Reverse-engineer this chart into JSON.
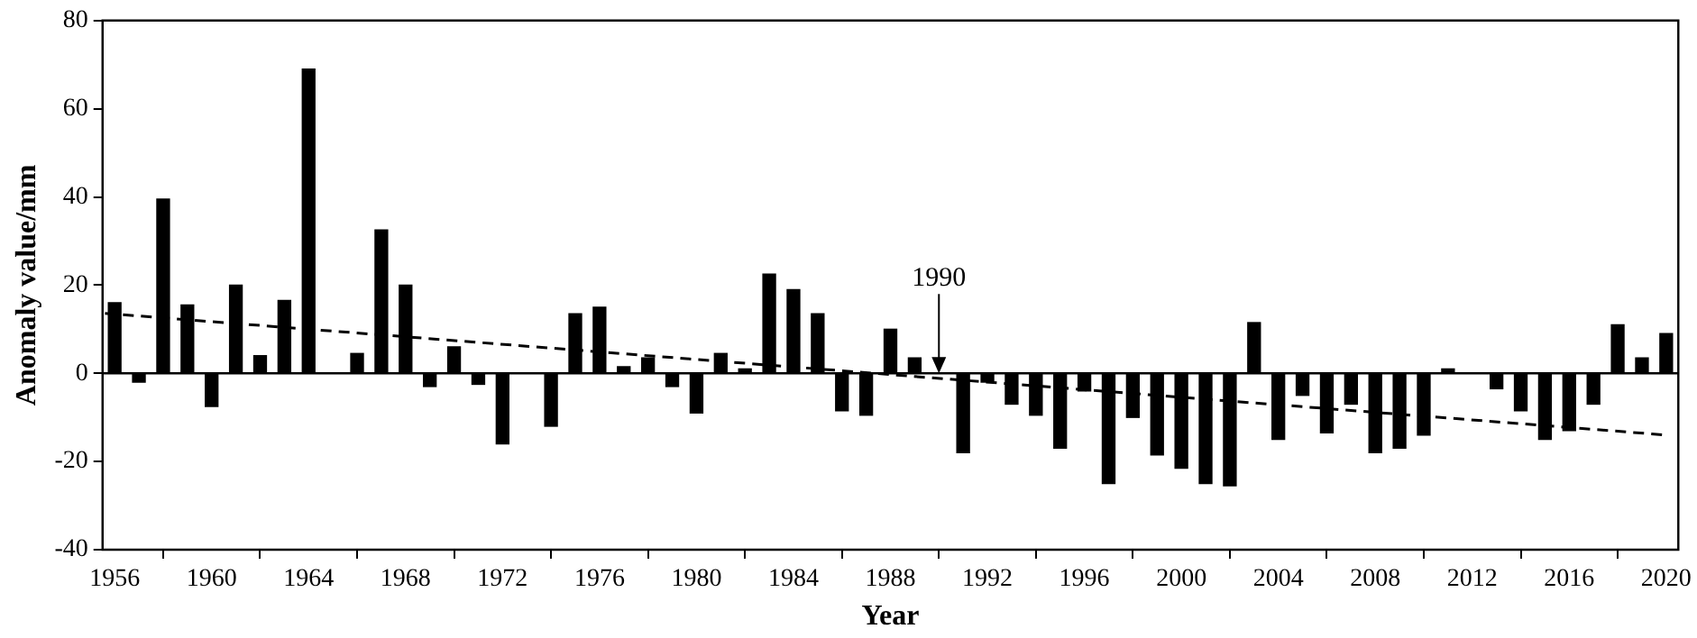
{
  "chart_data": {
    "type": "bar",
    "xlabel": "Year",
    "ylabel": "Anomaly value/mm",
    "x": [
      1956,
      1957,
      1958,
      1959,
      1960,
      1961,
      1962,
      1963,
      1964,
      1965,
      1966,
      1967,
      1968,
      1969,
      1970,
      1971,
      1972,
      1973,
      1974,
      1975,
      1976,
      1977,
      1978,
      1979,
      1980,
      1981,
      1982,
      1983,
      1984,
      1985,
      1986,
      1987,
      1988,
      1989,
      1990,
      1991,
      1992,
      1993,
      1994,
      1995,
      1996,
      1997,
      1998,
      1999,
      2000,
      2001,
      2002,
      2003,
      2004,
      2005,
      2006,
      2007,
      2008,
      2009,
      2010,
      2011,
      2012,
      2013,
      2014,
      2015,
      2016,
      2017,
      2018,
      2019,
      2020
    ],
    "series": [
      {
        "color": "#000000",
        "values": [
          16,
          -2,
          39.5,
          15.5,
          -7.5,
          20,
          4,
          16.5,
          69,
          0,
          4.5,
          32.5,
          20,
          -3,
          6,
          -2.5,
          -16,
          0,
          -12,
          13.5,
          15,
          1.5,
          3.5,
          -3,
          -9,
          4.5,
          1,
          22.5,
          19,
          13.5,
          -8.5,
          -9.5,
          10,
          3.5,
          0,
          -18,
          -2,
          -7,
          -9.5,
          -17,
          -4,
          -25,
          -10,
          -18.5,
          -21.5,
          -25,
          -25.5,
          11.5,
          -15,
          -5,
          -13.5,
          -7,
          -18,
          -17,
          -14,
          1,
          0,
          -3.5,
          -8.5,
          -15,
          -13,
          -7,
          11,
          3.5,
          9
        ]
      },
      {
        "type": "line",
        "x": [
          1955.6,
          2020
        ],
        "values": [
          13.6,
          -14
        ],
        "color": "#000000",
        "line_style": "dashed",
        "marker": "none"
      }
    ],
    "xlim": [
      1955.5,
      2020.5
    ],
    "xticks": [
      1956,
      1960,
      1964,
      1968,
      1972,
      1976,
      1980,
      1984,
      1988,
      1992,
      1996,
      2000,
      2004,
      2008,
      2012,
      2016,
      2020
    ],
    "ylim": [
      -40,
      80
    ],
    "yticks": [
      -40,
      -20,
      0,
      20,
      40,
      60,
      80
    ],
    "annotations": [
      {
        "text": "1990",
        "x": 1990,
        "y": 0
      }
    ],
    "legend": false
  }
}
